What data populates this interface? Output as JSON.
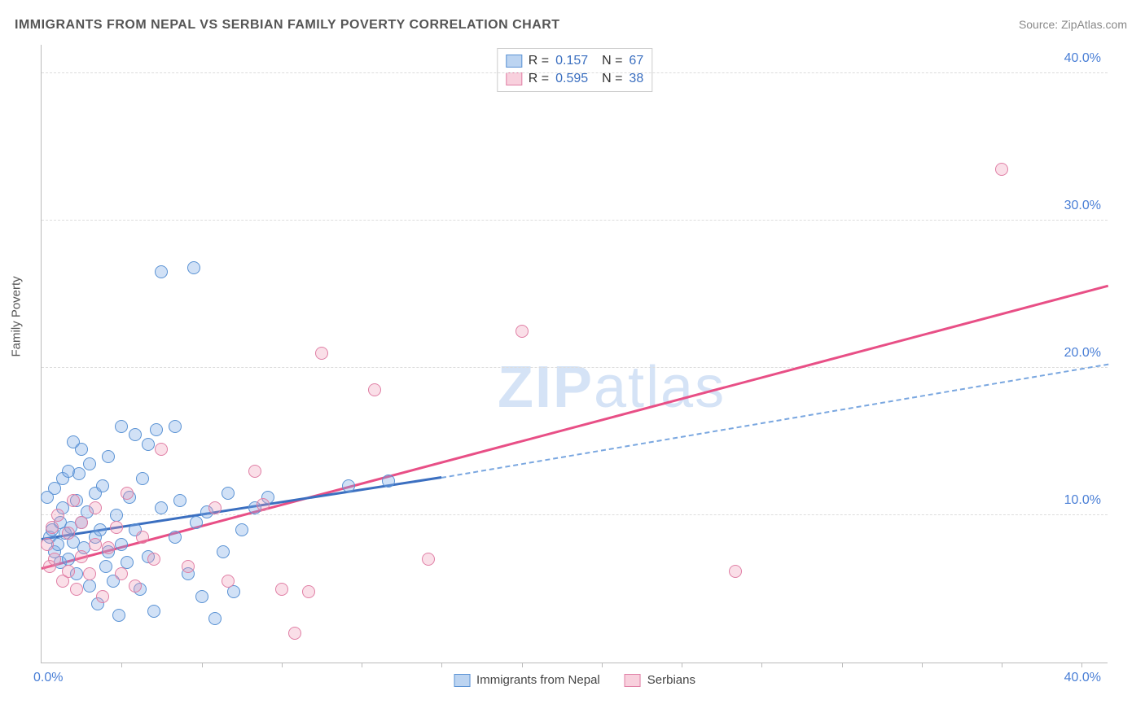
{
  "title": "IMMIGRANTS FROM NEPAL VS SERBIAN FAMILY POVERTY CORRELATION CHART",
  "source": "Source: ZipAtlas.com",
  "watermark": {
    "bold": "ZIP",
    "light": "atlas"
  },
  "chart": {
    "type": "scatter",
    "xlim": [
      0,
      40
    ],
    "ylim": [
      0,
      42
    ],
    "x_origin_label": "0.0%",
    "x_max_label": "40.0%",
    "y_ticks": [
      {
        "v": 10,
        "label": "10.0%"
      },
      {
        "v": 20,
        "label": "20.0%"
      },
      {
        "v": 30,
        "label": "30.0%"
      },
      {
        "v": 40,
        "label": "40.0%"
      }
    ],
    "x_tick_positions": [
      3,
      6,
      9,
      12,
      15,
      18,
      21,
      24,
      27,
      30,
      33,
      36,
      39
    ],
    "y_axis_label": "Family Poverty",
    "background_color": "#ffffff",
    "grid_color": "#dddddd",
    "axis_color": "#bbbbbb",
    "tick_label_color": "#4a7fd6",
    "series": [
      {
        "name": "Immigrants from Nepal",
        "color": "#7aaae4",
        "border": "#5a92d4",
        "R": "0.157",
        "N": "67",
        "trend": {
          "solid": {
            "x0": 0,
            "y0": 8.3,
            "x1": 15,
            "y1": 12.5,
            "color": "#3b6fc0",
            "width": 3
          },
          "dash": {
            "x0": 15,
            "y0": 12.5,
            "x1": 40,
            "y1": 20.2,
            "color": "#7aa7e0",
            "width": 2
          }
        },
        "points": [
          [
            0.2,
            11.2
          ],
          [
            0.3,
            8.5
          ],
          [
            0.4,
            9.0
          ],
          [
            0.5,
            7.5
          ],
          [
            0.5,
            11.8
          ],
          [
            0.6,
            8.0
          ],
          [
            0.7,
            9.5
          ],
          [
            0.7,
            6.8
          ],
          [
            0.8,
            10.5
          ],
          [
            0.8,
            12.5
          ],
          [
            0.9,
            8.8
          ],
          [
            1.0,
            7.0
          ],
          [
            1.0,
            13.0
          ],
          [
            1.1,
            9.2
          ],
          [
            1.2,
            15.0
          ],
          [
            1.2,
            8.2
          ],
          [
            1.3,
            11.0
          ],
          [
            1.3,
            6.0
          ],
          [
            1.4,
            12.8
          ],
          [
            1.5,
            9.5
          ],
          [
            1.5,
            14.5
          ],
          [
            1.6,
            7.8
          ],
          [
            1.7,
            10.2
          ],
          [
            1.8,
            5.2
          ],
          [
            1.8,
            13.5
          ],
          [
            2.0,
            8.5
          ],
          [
            2.0,
            11.5
          ],
          [
            2.1,
            4.0
          ],
          [
            2.2,
            9.0
          ],
          [
            2.3,
            12.0
          ],
          [
            2.4,
            6.5
          ],
          [
            2.5,
            14.0
          ],
          [
            2.5,
            7.5
          ],
          [
            2.7,
            5.5
          ],
          [
            2.8,
            10.0
          ],
          [
            2.9,
            3.2
          ],
          [
            3.0,
            8.0
          ],
          [
            3.0,
            16.0
          ],
          [
            3.2,
            6.8
          ],
          [
            3.3,
            11.2
          ],
          [
            3.5,
            9.0
          ],
          [
            3.5,
            15.5
          ],
          [
            3.7,
            5.0
          ],
          [
            3.8,
            12.5
          ],
          [
            4.0,
            7.2
          ],
          [
            4.0,
            14.8
          ],
          [
            4.2,
            3.5
          ],
          [
            4.3,
            15.8
          ],
          [
            4.5,
            10.5
          ],
          [
            4.5,
            26.5
          ],
          [
            5.0,
            8.5
          ],
          [
            5.0,
            16.0
          ],
          [
            5.2,
            11.0
          ],
          [
            5.5,
            6.0
          ],
          [
            5.7,
            26.8
          ],
          [
            5.8,
            9.5
          ],
          [
            6.0,
            4.5
          ],
          [
            6.2,
            10.2
          ],
          [
            6.5,
            3.0
          ],
          [
            6.8,
            7.5
          ],
          [
            7.0,
            11.5
          ],
          [
            7.2,
            4.8
          ],
          [
            7.5,
            9.0
          ],
          [
            8.0,
            10.5
          ],
          [
            8.5,
            11.2
          ],
          [
            11.5,
            12.0
          ],
          [
            13.0,
            12.3
          ]
        ]
      },
      {
        "name": "Serbians",
        "color": "#f096b4",
        "border": "#e07fa5",
        "R": "0.595",
        "N": "38",
        "trend": {
          "solid": {
            "x0": 0,
            "y0": 6.3,
            "x1": 40,
            "y1": 25.5,
            "color": "#e84f86",
            "width": 3
          }
        },
        "points": [
          [
            0.2,
            8.0
          ],
          [
            0.3,
            6.5
          ],
          [
            0.4,
            9.2
          ],
          [
            0.5,
            7.0
          ],
          [
            0.6,
            10.0
          ],
          [
            0.8,
            5.5
          ],
          [
            1.0,
            8.8
          ],
          [
            1.0,
            6.2
          ],
          [
            1.2,
            11.0
          ],
          [
            1.3,
            5.0
          ],
          [
            1.5,
            9.5
          ],
          [
            1.5,
            7.2
          ],
          [
            1.8,
            6.0
          ],
          [
            2.0,
            8.0
          ],
          [
            2.0,
            10.5
          ],
          [
            2.3,
            4.5
          ],
          [
            2.5,
            7.8
          ],
          [
            2.8,
            9.2
          ],
          [
            3.0,
            6.0
          ],
          [
            3.2,
            11.5
          ],
          [
            3.5,
            5.2
          ],
          [
            3.8,
            8.5
          ],
          [
            4.2,
            7.0
          ],
          [
            4.5,
            14.5
          ],
          [
            5.5,
            6.5
          ],
          [
            6.5,
            10.5
          ],
          [
            7.0,
            5.5
          ],
          [
            8.0,
            13.0
          ],
          [
            8.3,
            10.7
          ],
          [
            9.0,
            5.0
          ],
          [
            9.5,
            2.0
          ],
          [
            10.0,
            4.8
          ],
          [
            10.5,
            21.0
          ],
          [
            12.5,
            18.5
          ],
          [
            14.5,
            7.0
          ],
          [
            18.0,
            22.5
          ],
          [
            26.0,
            6.2
          ],
          [
            36.0,
            33.5
          ]
        ]
      }
    ],
    "legend_bottom": [
      {
        "label": "Immigrants from Nepal",
        "swatch": "blue"
      },
      {
        "label": "Serbians",
        "swatch": "pink"
      }
    ]
  }
}
